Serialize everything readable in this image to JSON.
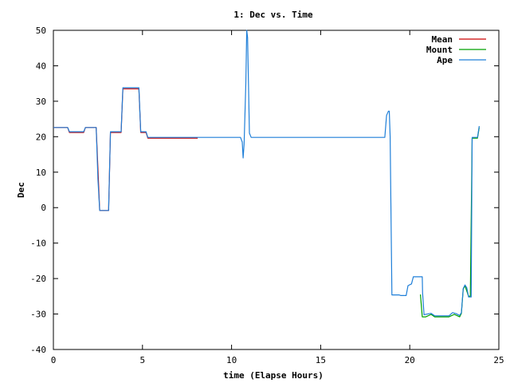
{
  "chart_data": {
    "type": "line",
    "title": "1: Dec vs. Time",
    "xlabel": "time (Elapse Hours)",
    "ylabel": "Dec",
    "xlim": [
      0,
      25
    ],
    "ylim": [
      -40,
      50
    ],
    "xticks": [
      0,
      5,
      10,
      15,
      20,
      25
    ],
    "yticks": [
      -40,
      -30,
      -20,
      -10,
      0,
      10,
      20,
      30,
      40,
      50
    ],
    "grid": false,
    "legend": "top-right",
    "series": [
      {
        "name": "Mean",
        "color": "#cc0000",
        "points": [
          [
            0,
            22.6
          ],
          [
            0.8,
            22.6
          ],
          [
            0.9,
            21.2
          ],
          [
            1.7,
            21.2
          ],
          [
            1.8,
            22.6
          ],
          [
            2.4,
            22.6
          ],
          [
            2.6,
            -0.8
          ],
          [
            3.1,
            -0.8
          ],
          [
            3.2,
            21.2
          ],
          [
            3.8,
            21.2
          ],
          [
            3.9,
            33.5
          ],
          [
            4.8,
            33.5
          ],
          [
            4.9,
            21.2
          ],
          [
            5.2,
            21.2
          ],
          [
            5.3,
            19.6
          ],
          [
            8.1,
            19.6
          ]
        ]
      },
      {
        "name": "Mount",
        "color": "#00a000",
        "points": [
          [
            20.6,
            -24.5
          ],
          [
            20.7,
            -30.8
          ],
          [
            20.9,
            -30.8
          ],
          [
            21.2,
            -30.1
          ],
          [
            21.4,
            -30.8
          ],
          [
            22.2,
            -30.8
          ],
          [
            22.5,
            -30.1
          ],
          [
            22.8,
            -30.8
          ],
          [
            22.9,
            -29.8
          ],
          [
            23.0,
            -23.0
          ],
          [
            23.1,
            -22.0
          ],
          [
            23.3,
            -25.0
          ],
          [
            23.4,
            -25.0
          ],
          [
            23.5,
            19.6
          ],
          [
            23.8,
            19.6
          ],
          [
            23.9,
            22.6
          ]
        ]
      },
      {
        "name": "Ape",
        "color": "#1f7fd8",
        "points": [
          [
            0,
            22.6
          ],
          [
            0.8,
            22.6
          ],
          [
            0.9,
            21.4
          ],
          [
            1.7,
            21.4
          ],
          [
            1.8,
            22.6
          ],
          [
            2.4,
            22.6
          ],
          [
            2.5,
            8
          ],
          [
            2.6,
            -0.8
          ],
          [
            3.1,
            -0.8
          ],
          [
            3.2,
            21.4
          ],
          [
            3.8,
            21.4
          ],
          [
            3.9,
            33.8
          ],
          [
            4.8,
            33.8
          ],
          [
            4.9,
            21.4
          ],
          [
            5.2,
            21.4
          ],
          [
            5.3,
            19.8
          ],
          [
            10.5,
            19.8
          ],
          [
            10.6,
            18.5
          ],
          [
            10.65,
            14
          ],
          [
            10.7,
            17.8
          ],
          [
            10.8,
            35
          ],
          [
            10.85,
            50
          ],
          [
            10.9,
            48
          ],
          [
            11.0,
            21
          ],
          [
            11.1,
            19.8
          ],
          [
            18.6,
            19.8
          ],
          [
            18.7,
            26
          ],
          [
            18.8,
            27.2
          ],
          [
            18.85,
            27.2
          ],
          [
            18.9,
            20
          ],
          [
            19.0,
            -24.6
          ],
          [
            19.4,
            -24.6
          ],
          [
            19.5,
            -24.8
          ],
          [
            19.8,
            -24.8
          ],
          [
            19.9,
            -22
          ],
          [
            20.1,
            -21.5
          ],
          [
            20.2,
            -19.5
          ],
          [
            20.7,
            -19.5
          ],
          [
            20.72,
            -24
          ],
          [
            20.8,
            -30.2
          ],
          [
            21.2,
            -29.8
          ],
          [
            21.4,
            -30.5
          ],
          [
            22.2,
            -30.5
          ],
          [
            22.4,
            -29.6
          ],
          [
            22.6,
            -29.9
          ],
          [
            22.8,
            -30.4
          ],
          [
            22.9,
            -29.6
          ],
          [
            23.0,
            -22.8
          ],
          [
            23.1,
            -21.8
          ],
          [
            23.2,
            -22.6
          ],
          [
            23.3,
            -25.2
          ],
          [
            23.45,
            -25.2
          ],
          [
            23.5,
            19.8
          ],
          [
            23.8,
            19.8
          ],
          [
            23.9,
            23.0
          ]
        ]
      }
    ]
  }
}
